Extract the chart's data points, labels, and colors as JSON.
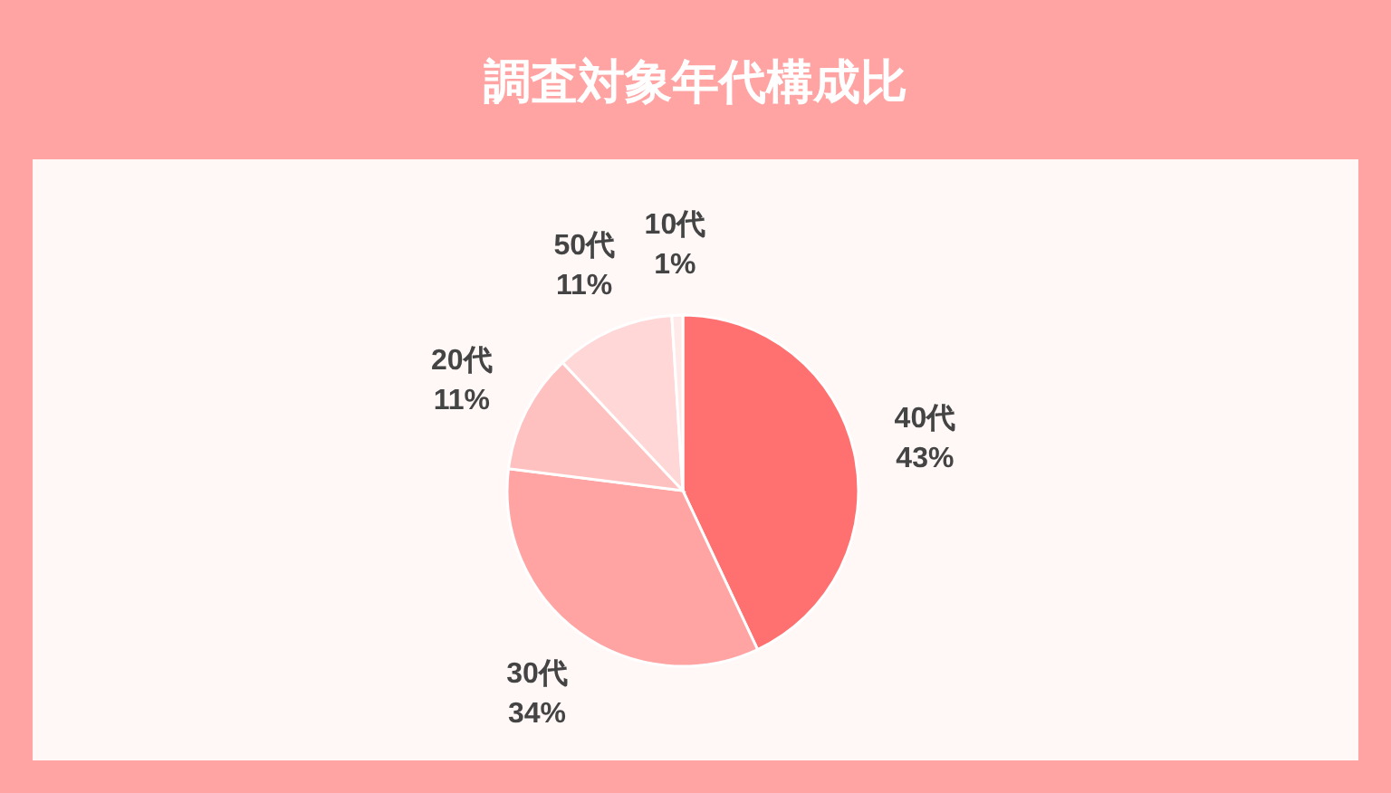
{
  "chart_data": {
    "type": "pie",
    "title": "調査対象年代構成比",
    "categories": [
      "40代",
      "30代",
      "20代",
      "50代",
      "10代"
    ],
    "values": [
      43,
      34,
      11,
      11,
      1
    ],
    "value_labels": [
      "43%",
      "34%",
      "11%",
      "11%",
      "1%"
    ],
    "colors": [
      "#ff7070",
      "#ffa3a3",
      "#ffc0c0",
      "#ffd7d7",
      "#ffe9e9"
    ]
  }
}
